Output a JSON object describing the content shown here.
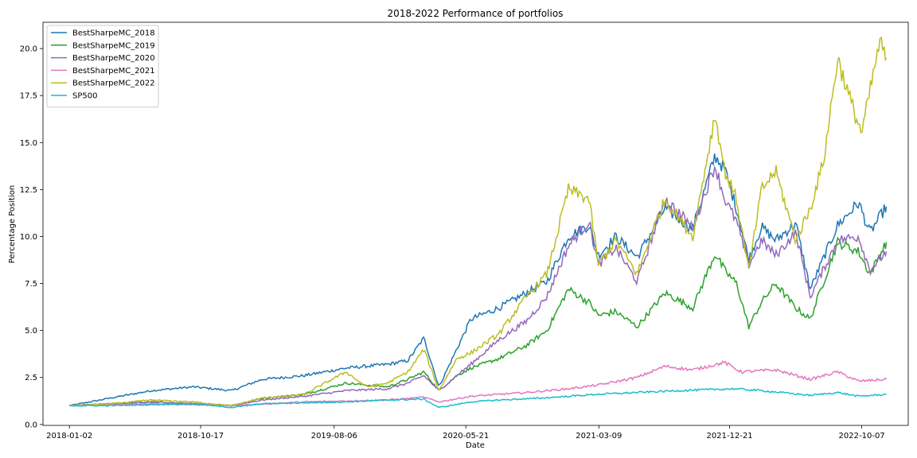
{
  "chart_data": {
    "type": "line",
    "title": "2018-2022 Performance of portfolios",
    "xlabel": "Date",
    "ylabel": "Percentage Position",
    "x_tick_labels": [
      "2018-01-02",
      "2018-10-17",
      "2019-08-06",
      "2020-05-21",
      "2021-03-09",
      "2021-12-21",
      "2022-10-07"
    ],
    "y_tick_labels": [
      "0.0",
      "2.5",
      "5.0",
      "7.5",
      "10.0",
      "12.5",
      "15.0",
      "17.5",
      "20.0"
    ],
    "x_range": [
      "2017-11-05",
      "2023-01-17"
    ],
    "ylim": [
      -0.05,
      21.4
    ],
    "grid": false,
    "legend_position": "upper left",
    "series": [
      {
        "name": "BestSharpeMC_2018",
        "color": "#1f77b4",
        "x": [
          "2018-01-02",
          "2018-04-01",
          "2018-07-01",
          "2018-10-01",
          "2018-12-24",
          "2019-03-01",
          "2019-06-01",
          "2019-09-01",
          "2019-12-01",
          "2020-01-15",
          "2020-02-19",
          "2020-03-23",
          "2020-05-01",
          "2020-06-01",
          "2020-08-01",
          "2020-10-01",
          "2020-11-15",
          "2021-01-01",
          "2021-02-15",
          "2021-03-08",
          "2021-04-15",
          "2021-06-01",
          "2021-08-01",
          "2021-10-01",
          "2021-11-19",
          "2021-12-10",
          "2022-01-05",
          "2022-02-01",
          "2022-03-01",
          "2022-04-01",
          "2022-05-15",
          "2022-06-16",
          "2022-08-15",
          "2022-09-30",
          "2022-10-25",
          "2022-11-30"
        ],
        "values": [
          1.0,
          1.4,
          1.8,
          2.0,
          1.8,
          2.4,
          2.6,
          3.0,
          3.2,
          3.4,
          4.6,
          2.0,
          4.0,
          5.6,
          6.2,
          7.0,
          7.6,
          10.0,
          10.6,
          9.0,
          10.0,
          8.9,
          11.5,
          10.4,
          14.3,
          13.6,
          11.5,
          8.8,
          10.5,
          9.8,
          10.7,
          7.2,
          10.6,
          11.8,
          10.2,
          11.6
        ]
      },
      {
        "name": "BestSharpeMC_2019",
        "color": "#2ca02c",
        "x": [
          "2018-01-02",
          "2018-04-01",
          "2018-07-01",
          "2018-10-01",
          "2018-12-24",
          "2019-03-01",
          "2019-06-01",
          "2019-09-01",
          "2019-12-01",
          "2020-01-15",
          "2020-02-19",
          "2020-03-23",
          "2020-05-01",
          "2020-06-01",
          "2020-08-01",
          "2020-10-01",
          "2020-11-15",
          "2021-01-01",
          "2021-02-15",
          "2021-03-08",
          "2021-04-15",
          "2021-06-01",
          "2021-08-01",
          "2021-10-01",
          "2021-11-19",
          "2021-12-10",
          "2022-01-05",
          "2022-02-01",
          "2022-03-01",
          "2022-04-01",
          "2022-05-15",
          "2022-06-16",
          "2022-08-15",
          "2022-09-30",
          "2022-10-25",
          "2022-11-30"
        ],
        "values": [
          1.0,
          1.1,
          1.2,
          1.1,
          1.0,
          1.4,
          1.6,
          2.2,
          2.0,
          2.4,
          2.8,
          1.8,
          2.6,
          3.0,
          3.5,
          4.2,
          5.0,
          7.2,
          6.5,
          5.8,
          6.0,
          5.2,
          7.0,
          6.2,
          9.1,
          8.2,
          7.5,
          5.2,
          6.5,
          7.5,
          6.2,
          5.6,
          9.7,
          9.2,
          8.0,
          9.7
        ]
      },
      {
        "name": "BestSharpeMC_2020",
        "color": "#9467bd",
        "x": [
          "2018-01-02",
          "2018-04-01",
          "2018-07-01",
          "2018-10-01",
          "2018-12-24",
          "2019-03-01",
          "2019-06-01",
          "2019-09-01",
          "2019-12-01",
          "2020-01-15",
          "2020-02-19",
          "2020-03-23",
          "2020-05-01",
          "2020-06-01",
          "2020-08-01",
          "2020-10-01",
          "2020-11-15",
          "2021-01-01",
          "2021-02-15",
          "2021-03-08",
          "2021-04-15",
          "2021-06-01",
          "2021-08-01",
          "2021-10-01",
          "2021-11-19",
          "2021-12-10",
          "2022-01-05",
          "2022-02-01",
          "2022-03-01",
          "2022-04-01",
          "2022-05-15",
          "2022-06-16",
          "2022-08-15",
          "2022-09-30",
          "2022-10-25",
          "2022-11-30"
        ],
        "values": [
          1.0,
          1.1,
          1.2,
          1.1,
          1.0,
          1.3,
          1.5,
          1.8,
          1.9,
          2.2,
          2.6,
          1.8,
          2.6,
          3.2,
          4.5,
          5.5,
          6.8,
          9.5,
          10.8,
          8.5,
          9.4,
          7.6,
          12.0,
          10.5,
          13.8,
          12.0,
          10.8,
          8.5,
          9.8,
          9.0,
          10.2,
          6.8,
          9.8,
          10.0,
          8.2,
          9.2
        ]
      },
      {
        "name": "BestSharpeMC_2021",
        "color": "#e377c2",
        "x": [
          "2018-01-02",
          "2018-07-01",
          "2018-12-24",
          "2019-06-01",
          "2019-12-01",
          "2020-02-19",
          "2020-03-23",
          "2020-06-01",
          "2020-10-01",
          "2021-01-01",
          "2021-03-08",
          "2021-06-01",
          "2021-08-01",
          "2021-10-01",
          "2021-12-10",
          "2022-01-15",
          "2022-04-01",
          "2022-06-16",
          "2022-08-15",
          "2022-09-30",
          "2022-11-30"
        ],
        "values": [
          1.0,
          1.1,
          1.0,
          1.2,
          1.3,
          1.45,
          1.2,
          1.5,
          1.7,
          1.9,
          2.1,
          2.5,
          3.1,
          2.9,
          3.3,
          2.8,
          2.9,
          2.4,
          2.8,
          2.3,
          2.4
        ]
      },
      {
        "name": "BestSharpeMC_2022",
        "color": "#bcbd22",
        "x": [
          "2018-01-02",
          "2018-04-01",
          "2018-07-01",
          "2018-10-01",
          "2018-12-24",
          "2019-03-01",
          "2019-06-01",
          "2019-09-01",
          "2019-10-15",
          "2019-12-01",
          "2020-01-15",
          "2020-02-19",
          "2020-03-23",
          "2020-05-01",
          "2020-06-01",
          "2020-08-01",
          "2020-10-01",
          "2020-11-15",
          "2021-01-01",
          "2021-02-15",
          "2021-03-08",
          "2021-04-15",
          "2021-06-01",
          "2021-08-01",
          "2021-10-01",
          "2021-11-19",
          "2021-12-10",
          "2022-01-05",
          "2022-02-01",
          "2022-03-01",
          "2022-04-01",
          "2022-05-15",
          "2022-06-16",
          "2022-07-15",
          "2022-08-15",
          "2022-09-15",
          "2022-10-07",
          "2022-11-15",
          "2022-11-30"
        ],
        "values": [
          1.0,
          1.1,
          1.3,
          1.2,
          1.0,
          1.4,
          1.6,
          2.8,
          2.0,
          2.2,
          2.8,
          4.0,
          1.8,
          3.5,
          3.8,
          4.8,
          6.8,
          8.0,
          12.5,
          12.0,
          8.5,
          9.8,
          8.0,
          12.0,
          10.0,
          16.5,
          13.5,
          12.0,
          8.2,
          12.5,
          13.5,
          9.8,
          11.5,
          14.0,
          19.5,
          17.0,
          15.5,
          20.3,
          19.5
        ]
      },
      {
        "name": "SP500",
        "color": "#17becf",
        "x": [
          "2018-01-02",
          "2018-04-01",
          "2018-07-01",
          "2018-10-01",
          "2018-12-24",
          "2019-03-01",
          "2019-06-01",
          "2019-09-01",
          "2019-12-01",
          "2020-02-19",
          "2020-03-23",
          "2020-06-01",
          "2020-08-01",
          "2020-11-01",
          "2021-01-01",
          "2021-03-01",
          "2021-06-01",
          "2021-09-01",
          "2021-12-30",
          "2022-03-01",
          "2022-06-16",
          "2022-08-15",
          "2022-09-30",
          "2022-11-30"
        ],
        "values": [
          1.0,
          1.0,
          1.05,
          1.1,
          0.9,
          1.1,
          1.15,
          1.2,
          1.3,
          1.35,
          0.9,
          1.2,
          1.3,
          1.4,
          1.5,
          1.6,
          1.7,
          1.8,
          1.9,
          1.8,
          1.55,
          1.7,
          1.5,
          1.6
        ]
      }
    ]
  }
}
